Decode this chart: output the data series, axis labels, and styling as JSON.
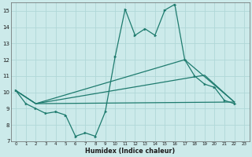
{
  "xlabel": "Humidex (Indice chaleur)",
  "bg_color": "#cceaea",
  "grid_color": "#b0d8d8",
  "line_color": "#1e7b6e",
  "xlim": [
    -0.5,
    23.5
  ],
  "ylim": [
    7,
    15.5
  ],
  "yticks": [
    7,
    8,
    9,
    10,
    11,
    12,
    13,
    14,
    15
  ],
  "xticks": [
    0,
    1,
    2,
    3,
    4,
    5,
    6,
    7,
    8,
    9,
    10,
    11,
    12,
    13,
    14,
    15,
    16,
    17,
    18,
    19,
    20,
    21,
    22,
    23
  ],
  "line1_x": [
    0,
    1,
    2,
    3,
    4,
    5,
    6,
    7,
    8,
    9,
    10,
    11,
    12,
    13,
    14,
    15,
    16,
    17,
    18,
    19,
    20,
    21,
    22
  ],
  "line1_y": [
    10.1,
    9.3,
    9.0,
    8.7,
    8.8,
    8.6,
    7.3,
    7.5,
    7.3,
    8.8,
    12.2,
    15.1,
    13.5,
    13.9,
    13.5,
    15.05,
    15.4,
    12.0,
    11.0,
    10.5,
    10.3,
    9.5,
    9.3
  ],
  "line2_x": [
    0,
    2,
    17,
    22
  ],
  "line2_y": [
    10.1,
    9.3,
    12.0,
    9.4
  ],
  "line3_x": [
    0,
    2,
    19,
    22
  ],
  "line3_y": [
    10.1,
    9.3,
    11.05,
    9.4
  ],
  "line4_x": [
    0,
    2,
    22
  ],
  "line4_y": [
    10.1,
    9.3,
    9.4
  ]
}
